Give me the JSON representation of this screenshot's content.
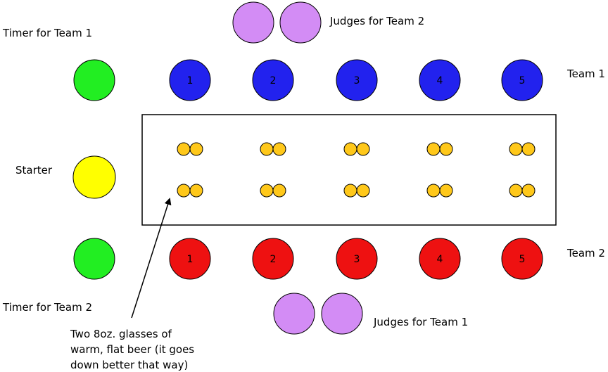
{
  "labels": {
    "timer_team1": "Timer for Team 1",
    "timer_team2": "Timer for Team 2",
    "judges_team2": "Judges for Team 2",
    "judges_team1": "Judges for Team 1",
    "team1": "Team 1",
    "team2": "Team 2",
    "starter": "Starter"
  },
  "team1_players": [
    "1",
    "2",
    "3",
    "4",
    "5"
  ],
  "team2_players": [
    "1",
    "2",
    "3",
    "4",
    "5"
  ],
  "beer_note": {
    "lines": [
      "Two 8oz. glasses of",
      "warm, flat beer (it goes",
      "down better that way)"
    ]
  },
  "colors": {
    "timer": "#22ee22",
    "starter": "#ffff00",
    "judge": "#d38cf5",
    "team1": "#2222ee",
    "team2": "#ee1111",
    "glass": "#ffc81a",
    "stroke": "#000000"
  }
}
